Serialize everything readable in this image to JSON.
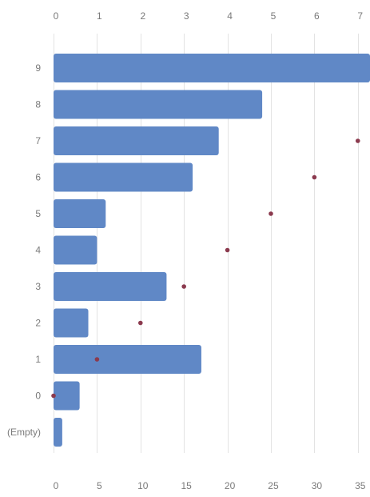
{
  "chart_data": {
    "type": "bar",
    "orientation": "horizontal",
    "title": "",
    "categories": [
      "9",
      "8",
      "7",
      "6",
      "5",
      "4",
      "3",
      "2",
      "1",
      "0",
      "(Empty)"
    ],
    "series": [
      {
        "type": "bar",
        "axis": "bottom",
        "values": [
          36.4,
          24.0,
          19.0,
          16.0,
          6.0,
          5.0,
          13.0,
          4.0,
          17.0,
          3.0,
          1.0
        ]
      },
      {
        "type": "scatter",
        "axis": "top",
        "values": [
          null,
          null,
          7,
          6,
          5,
          4,
          3,
          2,
          1,
          0,
          null
        ]
      }
    ],
    "bottom_axis": {
      "ticks": [
        0,
        5,
        10,
        15,
        20,
        25,
        30,
        35
      ],
      "range": [
        0,
        36.4
      ]
    },
    "top_axis": {
      "ticks": [
        0,
        1,
        2,
        3,
        4,
        5,
        6,
        7
      ],
      "range": [
        0,
        7.28
      ]
    },
    "grid": true,
    "legend": "none",
    "colors": {
      "bar": "#6088c6",
      "dot": "#8b3a4e",
      "grid": "#e3e3e3",
      "text": "#7a7a7a"
    }
  }
}
